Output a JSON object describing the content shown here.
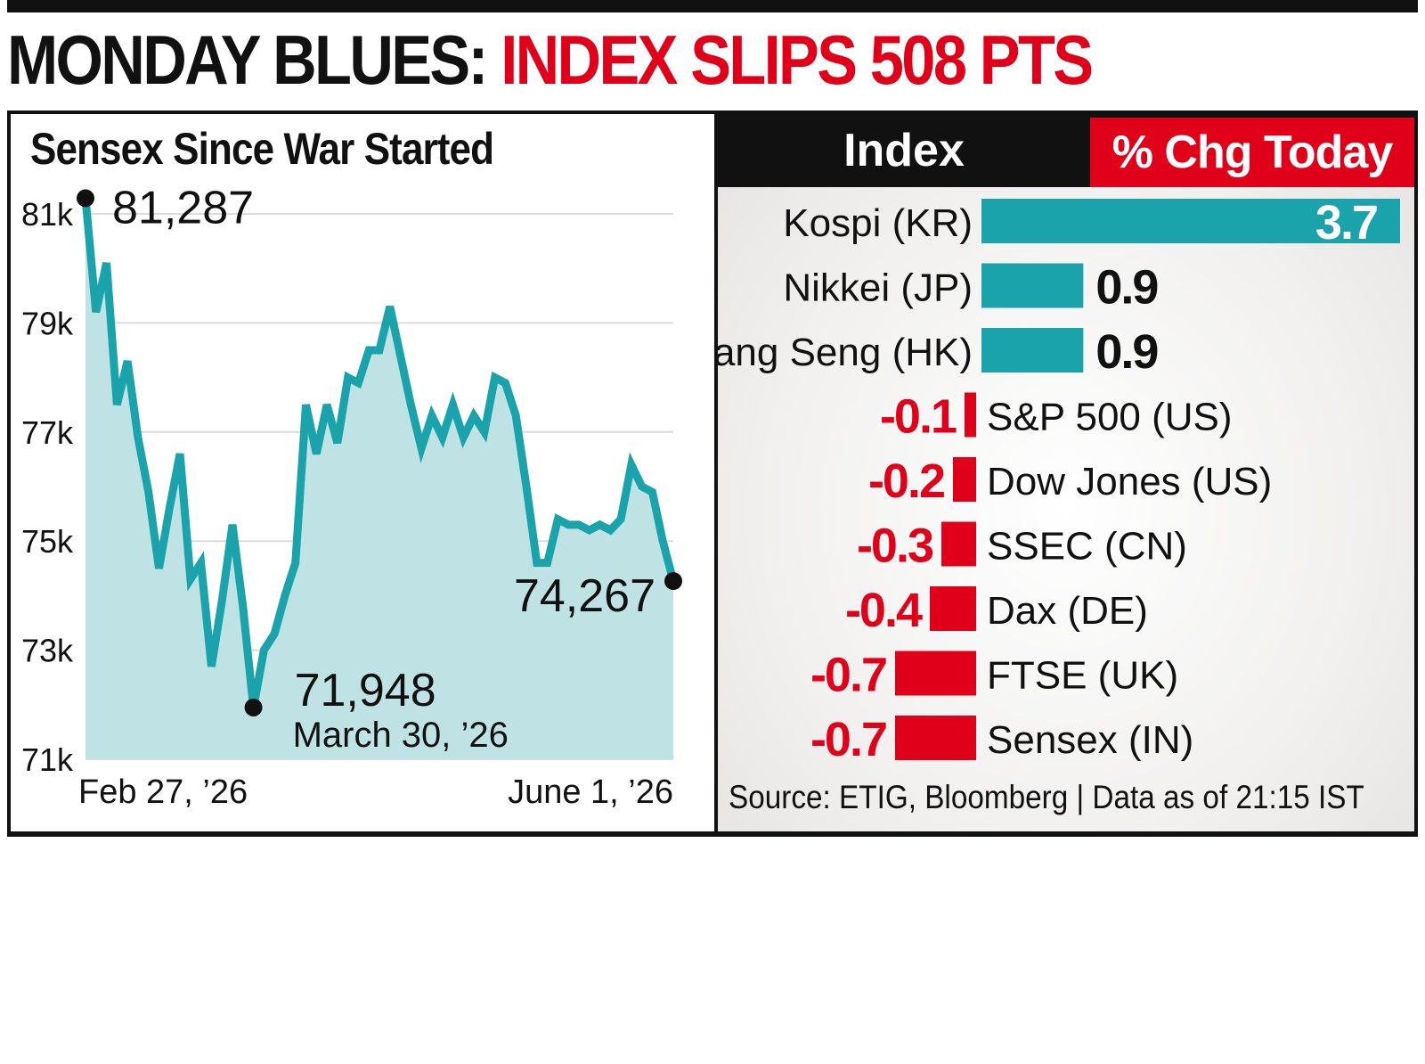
{
  "headline": {
    "part1": "MONDAY BLUES:",
    "part2": "INDEX SLIPS 508 PTS"
  },
  "colors": {
    "teal": "#1ba3ab",
    "teal_fill": "#bfe3e4",
    "red": "#e1001a",
    "black": "#111111"
  },
  "chart_data": [
    {
      "type": "area",
      "title": "Sensex Since War Started",
      "ylim": [
        71000,
        81500
      ],
      "yticks": [
        71000,
        73000,
        75000,
        77000,
        79000,
        81000
      ],
      "ytick_labels": [
        "71k",
        "73k",
        "75k",
        "77k",
        "79k",
        "81k"
      ],
      "xtick_labels": [
        "Feb 27, ’26",
        "June 1, ’26"
      ],
      "grid": true,
      "series": [
        {
          "values": [
            81287,
            79200,
            80100,
            77500,
            78300,
            76900,
            75900,
            74500,
            75600,
            76600,
            74300,
            74600,
            72700,
            73900,
            75300,
            73800,
            71948,
            73000,
            73300,
            74000,
            74600,
            77500,
            76600,
            77500,
            76800,
            78000,
            77900,
            78500,
            78500,
            79300,
            78400,
            77500,
            76700,
            77300,
            76900,
            77500,
            76900,
            77300,
            77000,
            78000,
            77900,
            77300,
            76000,
            74600,
            74600,
            75400,
            75300,
            75300,
            75200,
            75300,
            75200,
            75400,
            76400,
            76000,
            75900,
            75000,
            74267
          ]
        }
      ],
      "annotations": [
        {
          "label": "81,287",
          "value": 81287,
          "sublabel": ""
        },
        {
          "label": "71,948",
          "value": 71948,
          "sublabel": "March 30, ’26"
        },
        {
          "label": "74,267",
          "value": 74267,
          "sublabel": ""
        }
      ]
    },
    {
      "type": "bar",
      "orientation": "horizontal",
      "column_headers": [
        "Index",
        "% Chg Today"
      ],
      "categories": [
        "Kospi (KR)",
        "Nikkei (JP)",
        "Hang Seng (HK)",
        "S&P 500 (US)",
        "Dow Jones (US)",
        "SSEC (CN)",
        "Dax (DE)",
        "FTSE (UK)",
        "Sensex (IN)"
      ],
      "values": [
        3.7,
        0.9,
        0.9,
        -0.1,
        -0.2,
        -0.3,
        -0.4,
        -0.7,
        -0.7
      ],
      "value_labels": [
        "3.7",
        "0.9",
        "0.9",
        "-0.1",
        "-0.2",
        "-0.3",
        "-0.4",
        "-0.7",
        "-0.7"
      ]
    }
  ],
  "source": "Source: ETIG, Bloomberg | Data as of 21:15 IST"
}
